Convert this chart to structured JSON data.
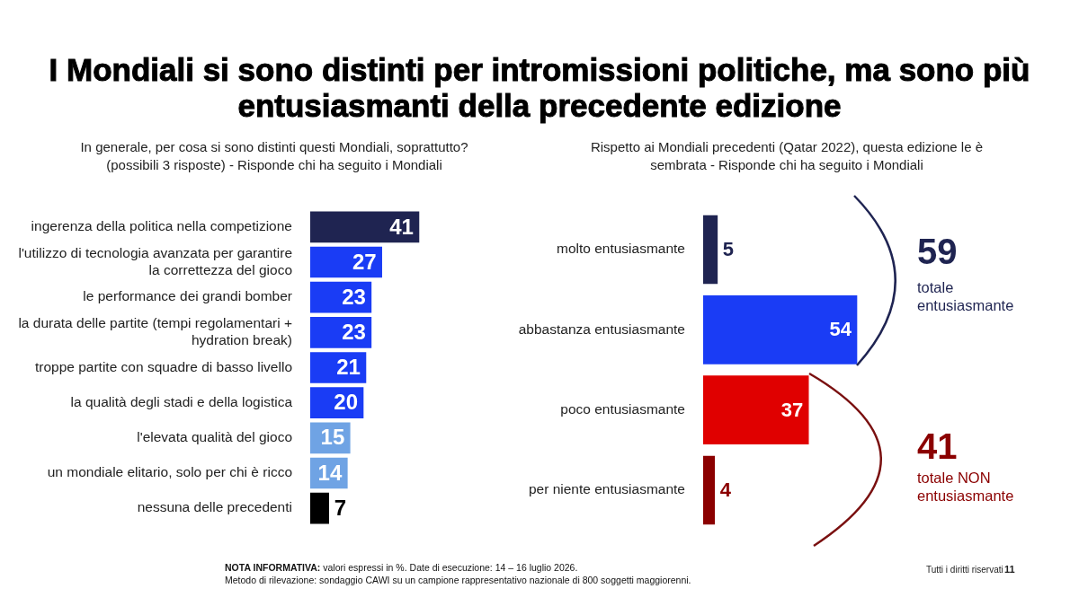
{
  "chart_data": [
    {
      "type": "bar",
      "orientation": "horizontal",
      "title": "I Mondiali si sono distinti per intromissioni politiche, ma sono più entusiasmanti della precedente edizione",
      "subtitle": "In generale, per cosa si sono distinti questi Mondiali, soprattutto? (possibili 3 risposte) - Risponde chi ha seguito i Mondiali",
      "categories": [
        "ingerenza della politica nella competizione",
        "l'utilizzo di tecnologia avanzata per garantire la correttezza del gioco",
        "le performance dei grandi bomber",
        "la durata delle partite (tempi regolamentari + hydration break)",
        "troppe partite con squadre di basso livello",
        "la qualità degli stadi e della logistica",
        "l'elevata qualità del gioco",
        "un mondiale elitario, solo per chi è ricco",
        "nessuna delle precedenti"
      ],
      "values": [
        41,
        27,
        23,
        23,
        21,
        20,
        15,
        14,
        7
      ],
      "colors": [
        "#1f2451",
        "#1a3cf5",
        "#1a3cf5",
        "#1a3cf5",
        "#1a3cf5",
        "#1a3cf5",
        "#6fa3e4",
        "#6fa3e4",
        "#000000"
      ],
      "data_labels": true,
      "grid": false,
      "legend": false,
      "tick_labels": "y",
      "annotations": [
        "NOTA INFORMATIVA: valori espressi in %. Date di esecuzione: 14 – 16 luglio 2026.",
        "Metodo di rilevazione: sondaggio CAWI su un campione rappresentativo nazionale di 800 soggetti maggiorenni."
      ]
    },
    {
      "type": "bar",
      "orientation": "horizontal",
      "subtitle": "Rispetto ai Mondiali precedenti (Qatar 2022), questa edizione le è sembrata - Risponde chi ha seguito i Mondiali",
      "categories": [
        "molto entusiasmante",
        "abbastanza entusiasmante",
        "poco entusiasmante",
        "per niente entusiasmante"
      ],
      "values": [
        5,
        54,
        37,
        4
      ],
      "colors": [
        "#1f2451",
        "#1a3cf5",
        "#e00000",
        "#8b0000"
      ],
      "data_labels": true,
      "grid": false,
      "legend": false,
      "tick_labels": "y",
      "annotations": [
        "59",
        "totale entusiasmante",
        "41",
        "totale NON entusiasmante",
        "Tutti i diritti riservati",
        "11"
      ]
    }
  ]
}
